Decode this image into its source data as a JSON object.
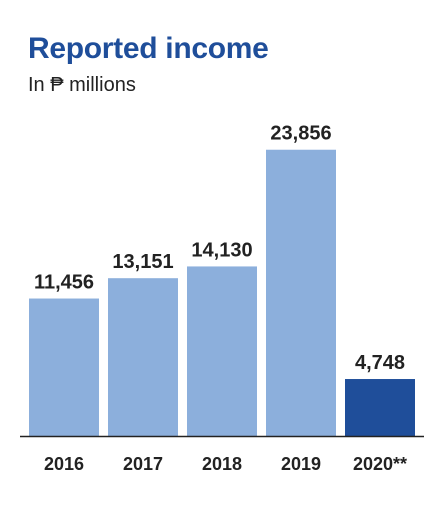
{
  "chart_data": {
    "type": "bar",
    "title": "Reported income",
    "subtitle": "In ₱ millions",
    "xlabel": "",
    "ylabel": "",
    "categories": [
      "2016",
      "2017",
      "2018",
      "2019",
      "2020**"
    ],
    "values": [
      11456,
      13151,
      14130,
      23856,
      4748
    ],
    "value_labels": [
      "11,456",
      "13,151",
      "14,130",
      "23,856",
      "4,748"
    ],
    "highlight_index": 4,
    "ylim": [
      0,
      24000
    ],
    "grid": false,
    "legend": "none",
    "colors": {
      "bar": "#8cafdc",
      "highlight": "#1f4e9a",
      "baseline": "#222222",
      "title": "#1f4e9a",
      "text": "#222222"
    }
  }
}
